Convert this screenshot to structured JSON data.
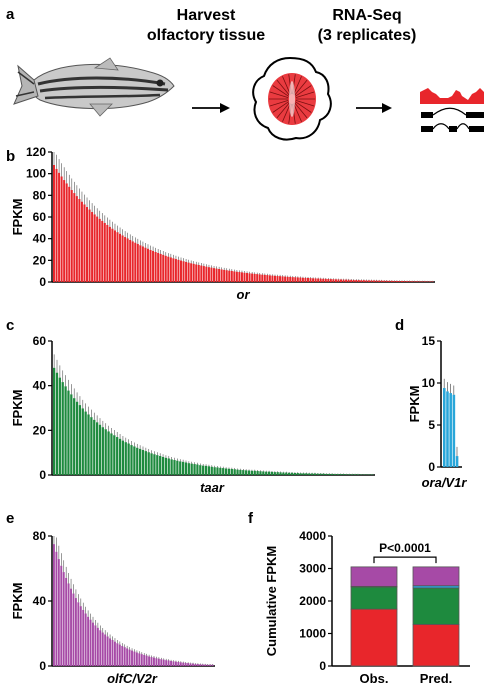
{
  "panels": {
    "a": {
      "letter": "a",
      "step1": [
        "Harvest",
        "olfactory tissue"
      ],
      "step2": [
        "RNA-Seq",
        "(3 replicates)"
      ],
      "fish_icon": "zebrafish-icon",
      "tissue_icon": "olfactory-rosette-icon",
      "reads_icon": "rna-seq-reads-icon"
    }
  },
  "colors": {
    "or": "#e8262b",
    "taar": "#1e8a3e",
    "ora": "#29a6d9",
    "olfc": "#a64aa6",
    "err": "#555555"
  },
  "chart_data": [
    {
      "panel": "b",
      "type": "bar",
      "xlabel": "or",
      "ylabel": "FPKM",
      "ylim": [
        0,
        120
      ],
      "yticks": [
        0,
        20,
        40,
        60,
        80,
        100,
        120
      ],
      "color": "#e8262b",
      "error_bars": true,
      "shape": {
        "count": 150,
        "start": 100,
        "decay": 28,
        "floor": 0.8,
        "end": 0.3
      },
      "values": []
    },
    {
      "panel": "c",
      "type": "bar",
      "xlabel": "taar",
      "ylabel": "FPKM",
      "ylim": [
        0,
        60
      ],
      "yticks": [
        0,
        20,
        40,
        60
      ],
      "color": "#1e8a3e",
      "error_bars": true,
      "shape": {
        "count": 112,
        "start": 44,
        "decay": 20,
        "floor": 0.4,
        "end": 0.2
      },
      "values": []
    },
    {
      "panel": "d",
      "type": "bar",
      "xlabel": "ora/V1r",
      "ylabel": "FPKM",
      "ylim": [
        0,
        15
      ],
      "yticks": [
        0,
        5,
        10,
        15
      ],
      "color": "#29a6d9",
      "error_bars": true,
      "values": [
        9.4,
        9.0,
        8.8,
        8.6,
        1.3
      ]
    },
    {
      "panel": "e",
      "type": "bar",
      "xlabel": "olfC/V2r",
      "ylabel": "FPKM",
      "ylim": [
        0,
        80
      ],
      "yticks": [
        0,
        40,
        80
      ],
      "color": "#a64aa6",
      "error_bars": true,
      "shape": {
        "count": 66,
        "start": 60,
        "decay": 14,
        "floor": 1.5,
        "end": 0.8
      },
      "values": []
    },
    {
      "panel": "f",
      "type": "stacked-bar",
      "xlabel": "",
      "ylabel": "Cumulative FPKM",
      "ylim": [
        0,
        4000
      ],
      "yticks": [
        0,
        1000,
        2000,
        3000,
        4000
      ],
      "categories": [
        "Obs.",
        "Pred."
      ],
      "stack_order": [
        "or",
        "taar",
        "ora",
        "olfc"
      ],
      "series": [
        {
          "key": "or",
          "color": "#e8262b",
          "values": [
            1750,
            1280
          ]
        },
        {
          "key": "taar",
          "color": "#1e8a3e",
          "values": [
            680,
            1120
          ]
        },
        {
          "key": "ora",
          "color": "#29a6d9",
          "values": [
            20,
            70
          ]
        },
        {
          "key": "olfc",
          "color": "#a64aa6",
          "values": [
            600,
            580
          ]
        }
      ],
      "annotation": "P<0.0001"
    }
  ]
}
